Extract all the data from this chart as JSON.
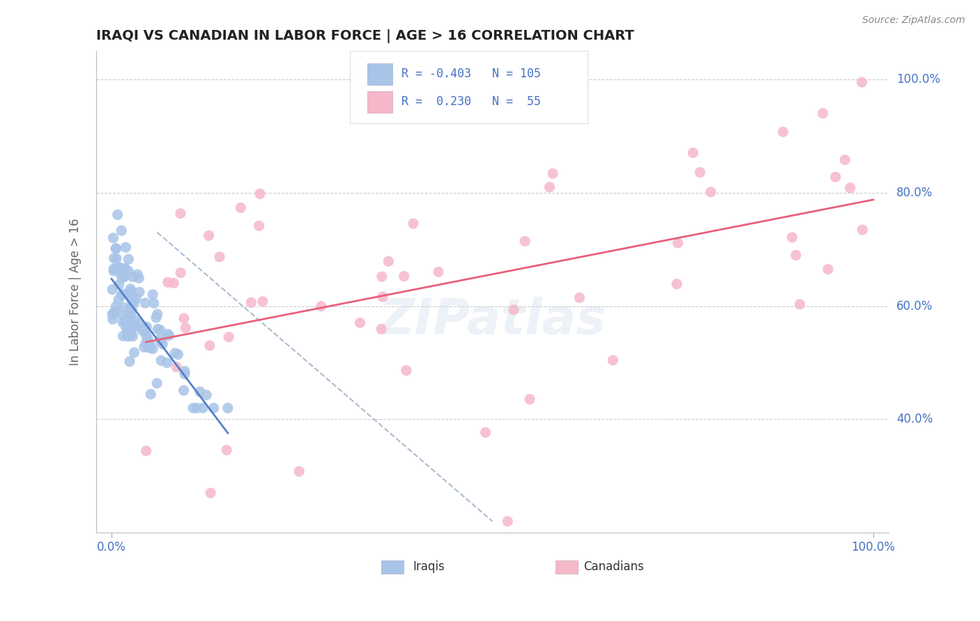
{
  "title": "IRAQI VS CANADIAN IN LABOR FORCE | AGE > 16 CORRELATION CHART",
  "source_text": "Source: ZipAtlas.com",
  "legend_iraqis_R": -0.403,
  "legend_iraqis_N": 105,
  "legend_canadians_R": 0.23,
  "legend_canadians_N": 55,
  "iraqis_color": "#a8c4e8",
  "canadians_color": "#f5b8ca",
  "iraqis_line_color": "#5580c8",
  "canadians_line_color": "#e8607a",
  "diagonal_line_color": "#aabbd0",
  "text_blue_color": "#4472c4",
  "title_color": "#222222",
  "background_color": "#ffffff",
  "grid_color": "#cccccc",
  "ylabel_right_color": "#4472c4",
  "xlabel_color": "#4472c4",
  "watermark_color": "#ccd8ec",
  "watermark_alpha": 0.35,
  "x_min": 0.0,
  "x_max": 1.0,
  "y_min": 0.2,
  "y_max": 1.05,
  "yticks": [
    0.4,
    0.6,
    0.8,
    1.0
  ],
  "ytick_labels": [
    "40.0%",
    "60.0%",
    "80.0%",
    "100.0%"
  ],
  "xtick_labels": [
    "0.0%",
    "100.0%"
  ],
  "iraqis_circle_size": 120,
  "canadians_circle_size": 120,
  "trend_linewidth": 2.0,
  "diagonal_linewidth": 1.5
}
